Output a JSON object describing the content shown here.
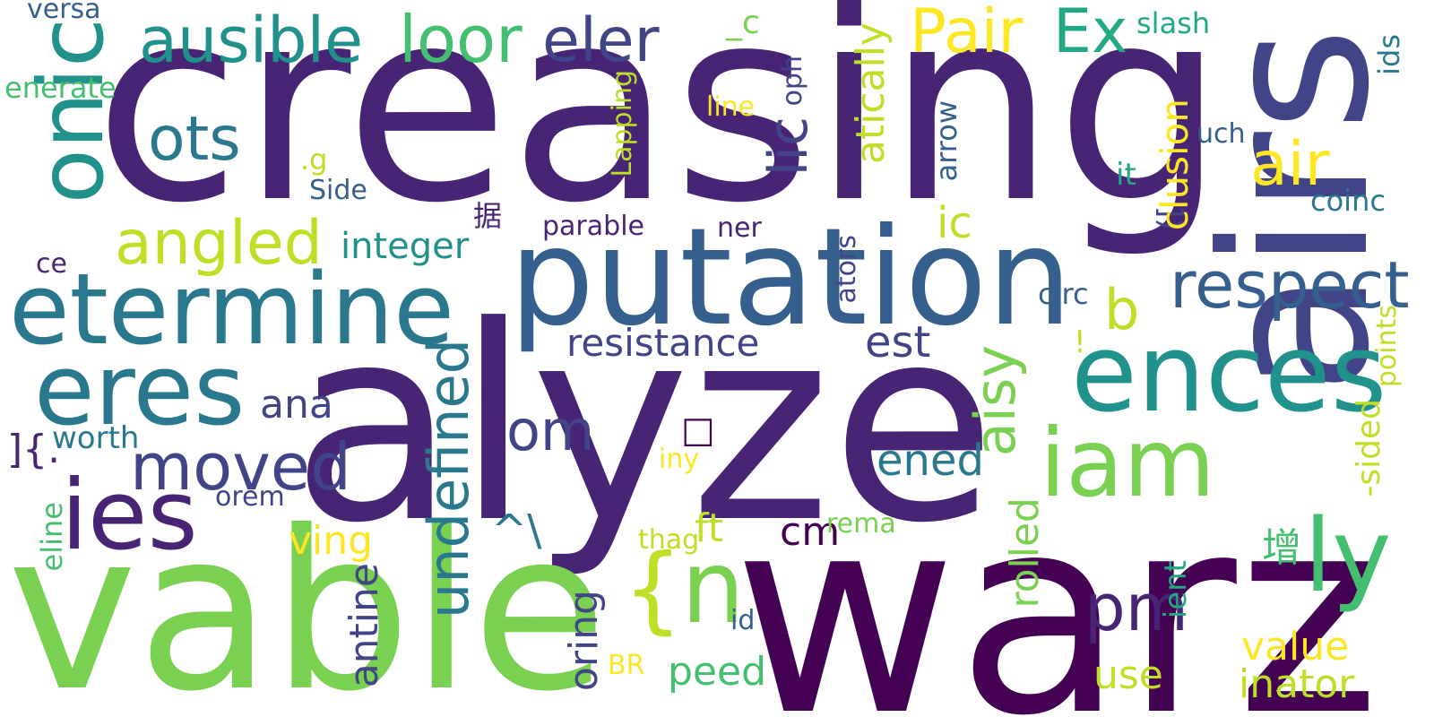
{
  "palette": {
    "deep_purple": "#440154",
    "purple": "#482475",
    "indigo": "#414487",
    "blue": "#355f8d",
    "steel": "#2a788e",
    "teal": "#21918c",
    "green_teal": "#22a884",
    "green": "#44bf70",
    "lime": "#7ad151",
    "yellow_green": "#bddf26",
    "yellow": "#fde725"
  },
  "words": [
    {
      "text": "creasing",
      "color": "#482475"
    },
    {
      "text": "alyze",
      "color": "#482475"
    },
    {
      "text": "warz",
      "color": "#440154"
    },
    {
      "text": "airs",
      "color": "#414487"
    },
    {
      "text": "vable",
      "color": "#7ad151"
    },
    {
      "text": "putation",
      "color": "#355f8d"
    },
    {
      "text": "etermine",
      "color": "#2a788e"
    },
    {
      "text": "eres",
      "color": "#2a788e"
    },
    {
      "text": "ences",
      "color": "#21918c"
    },
    {
      "text": "ies",
      "color": "#482475"
    },
    {
      "text": "onic",
      "color": "#21918c"
    },
    {
      "text": "iam",
      "color": "#7ad151"
    },
    {
      "text": "ausible",
      "color": "#21918c"
    },
    {
      "text": "loor",
      "color": "#44bf70"
    },
    {
      "text": "eler",
      "color": "#414487"
    },
    {
      "text": "Pair",
      "color": "#fde725"
    },
    {
      "text": "Ex",
      "color": "#22a884"
    },
    {
      "text": "ots",
      "color": "#2a788e"
    },
    {
      "text": "air",
      "color": "#fde725"
    },
    {
      "text": "respect",
      "color": "#355f8d"
    },
    {
      "text": "angled",
      "color": "#bddf26"
    },
    {
      "text": "moved",
      "color": "#414487"
    },
    {
      "text": "integer",
      "color": "#21918c"
    },
    {
      "text": "resistance",
      "color": "#414487"
    },
    {
      "text": "undefined",
      "color": "#2a788e"
    },
    {
      "text": "om",
      "color": "#414487"
    },
    {
      "text": "ly",
      "color": "#44bf70"
    },
    {
      "text": "n",
      "color": "#7ad151"
    },
    {
      "text": "{",
      "color": "#bddf26"
    },
    {
      "text": "pm",
      "color": "#482475"
    },
    {
      "text": "aisy",
      "color": "#7ad151"
    },
    {
      "text": "lic",
      "color": "#414487"
    },
    {
      "text": "atically",
      "color": "#bddf26"
    },
    {
      "text": "ic",
      "color": "#bddf26"
    },
    {
      "text": "b",
      "color": "#bddf26"
    },
    {
      "text": "est",
      "color": "#414487"
    },
    {
      "text": "ened",
      "color": "#2a788e"
    },
    {
      "text": "ana",
      "color": "#414487"
    },
    {
      "text": "worth",
      "color": "#2a788e"
    },
    {
      "text": "ving",
      "color": "#fde725"
    },
    {
      "text": "orem",
      "color": "#414487"
    },
    {
      "text": "eline",
      "color": "#44bf70"
    },
    {
      "text": "antine",
      "color": "#414487"
    },
    {
      "text": "oring",
      "color": "#414487"
    },
    {
      "text": "^\\",
      "color": "#2a788e"
    },
    {
      "text": "ft",
      "color": "#bddf26"
    },
    {
      "text": "cm",
      "color": "#440154"
    },
    {
      "text": "rema",
      "color": "#7ad151"
    },
    {
      "text": "thag",
      "color": "#bddf26"
    },
    {
      "text": "peed",
      "color": "#44bf70"
    },
    {
      "text": "id",
      "color": "#355f8d"
    },
    {
      "text": "BR",
      "color": "#fde725"
    },
    {
      "text": "rolled",
      "color": "#7ad151"
    },
    {
      "text": "value",
      "color": "#fde725"
    },
    {
      "text": "use",
      "color": "#bddf26"
    },
    {
      "text": "inator",
      "color": "#bddf26"
    },
    {
      "text": "ient",
      "color": "#22a884"
    },
    {
      "text": "增",
      "color": "#44bf70"
    },
    {
      "text": "-sided",
      "color": "#bddf26"
    },
    {
      "text": "points",
      "color": "#bddf26"
    },
    {
      "text": "coinc",
      "color": "#2a788e"
    },
    {
      "text": "ids",
      "color": "#2a788e"
    },
    {
      "text": "slash",
      "color": "#22a884"
    },
    {
      "text": "uch",
      "color": "#355f8d"
    },
    {
      "text": "it",
      "color": "#22a884"
    },
    {
      "text": "([",
      "color": "#414487"
    },
    {
      "text": "clusion",
      "color": "#fde725"
    },
    {
      "text": "arrow",
      "color": "#355f8d"
    },
    {
      "text": "circ",
      "color": "#355f8d"
    },
    {
      "text": "!",
      "color": "#bddf26"
    },
    {
      "text": "ators",
      "color": "#414487"
    },
    {
      "text": "ner",
      "color": "#482475"
    },
    {
      "text": "parable",
      "color": "#482475"
    },
    {
      "text": "据",
      "color": "#482475"
    },
    {
      "text": "Side",
      "color": "#355f8d"
    },
    {
      "text": ".g",
      "color": "#bddf26"
    },
    {
      "text": "line",
      "color": "#fde725"
    },
    {
      "text": "oph",
      "color": "#414487"
    },
    {
      "text": "Lapping",
      "color": "#bddf26"
    },
    {
      "text": "_c",
      "color": "#7ad151"
    },
    {
      "text": "versa",
      "color": "#355f8d"
    },
    {
      "text": "enerate",
      "color": "#44bf70"
    },
    {
      "text": "ce",
      "color": "#482475"
    },
    {
      "text": "]{.",
      "color": "#482475"
    },
    {
      "text": "iny",
      "color": "#fde725"
    },
    {
      "text": "□",
      "color": "#440154"
    }
  ]
}
